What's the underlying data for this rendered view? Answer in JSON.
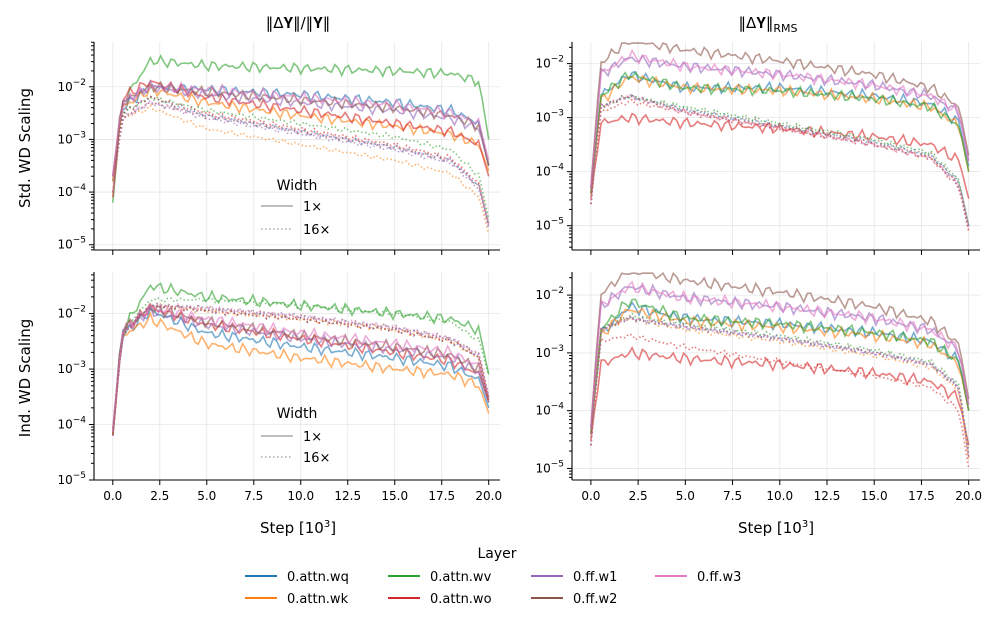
{
  "figure": {
    "col_titles": [
      "‖Δ𝐘‖/‖𝐘‖",
      "‖Δ𝐘‖",
      "RMS"
    ],
    "row_labels": [
      "Std. WD Scaling",
      "Ind. WD Scaling"
    ],
    "xlabel": "Step [10",
    "xlabel_sup": "3",
    "xlabel_end": "]",
    "x_ticks": [
      "0.0",
      "2.5",
      "5.0",
      "7.5",
      "10.0",
      "12.5",
      "15.0",
      "17.5",
      "20.0"
    ]
  },
  "legend": {
    "title": "Layer",
    "entries": [
      "0.attn.wq",
      "0.attn.wk",
      "0.attn.wv",
      "0.attn.wo",
      "0.ff.w1",
      "0.ff.w2",
      "0.ff.w3"
    ],
    "colors": [
      "#1f77b4",
      "#ff7f0e",
      "#2ca02c",
      "#d62728",
      "#9467bd",
      "#8c564b",
      "#e377c2"
    ]
  },
  "width_legend": {
    "title": "Width",
    "entries": [
      "1×",
      "16×"
    ]
  },
  "chart_data": [
    {
      "type": "line",
      "title": "‖ΔY‖/‖Y‖",
      "row_label": "Std. WD Scaling",
      "xlabel": "Step [10^3]",
      "xlim": [
        -1,
        20.6
      ],
      "yscale": "log",
      "ylim_log10": [
        -5.1,
        -1.15
      ],
      "y_ticks_log10": [
        -2,
        -3,
        -4,
        -5
      ],
      "series_note": "7 layers x 2 widths; y values as log10",
      "x": [
        0,
        0.5,
        2.0,
        5,
        10,
        15,
        18,
        19.5,
        20
      ],
      "series": [
        {
          "name": "0.attn.wq",
          "width": "1x",
          "y_log10": [
            -3.8,
            -2.4,
            -2.0,
            -2.05,
            -2.15,
            -2.3,
            -2.45,
            -2.7,
            -3.5
          ]
        },
        {
          "name": "0.attn.wk",
          "width": "1x",
          "y_log10": [
            -3.8,
            -2.4,
            -2.05,
            -2.3,
            -2.55,
            -2.75,
            -2.9,
            -3.1,
            -3.6
          ]
        },
        {
          "name": "0.attn.wv",
          "width": "1x",
          "y_log10": [
            -4.2,
            -2.3,
            -1.5,
            -1.6,
            -1.65,
            -1.7,
            -1.75,
            -1.9,
            -3.0
          ]
        },
        {
          "name": "0.attn.wo",
          "width": "1x",
          "y_log10": [
            -4.1,
            -2.2,
            -1.9,
            -2.2,
            -2.45,
            -2.7,
            -2.85,
            -3.1,
            -3.7
          ]
        },
        {
          "name": "0.ff.w1",
          "width": "1x",
          "y_log10": [
            -3.7,
            -2.3,
            -2.0,
            -2.15,
            -2.3,
            -2.45,
            -2.6,
            -2.8,
            -3.5
          ]
        },
        {
          "name": "0.ff.w2",
          "width": "1x",
          "y_log10": [
            -3.7,
            -2.3,
            -2.0,
            -2.1,
            -2.25,
            -2.4,
            -2.55,
            -2.75,
            -3.5
          ]
        },
        {
          "name": "0.ff.w3",
          "width": "1x",
          "y_log10": [
            -3.7,
            -2.3,
            -2.0,
            -2.05,
            -2.2,
            -2.35,
            -2.5,
            -2.7,
            -3.4
          ]
        },
        {
          "name": "0.attn.wq",
          "width": "16x",
          "y_log10": [
            -4.0,
            -2.5,
            -2.2,
            -2.55,
            -2.85,
            -3.15,
            -3.4,
            -3.9,
            -4.6
          ]
        },
        {
          "name": "0.attn.wk",
          "width": "16x",
          "y_log10": [
            -4.0,
            -2.6,
            -2.4,
            -2.8,
            -3.1,
            -3.4,
            -3.65,
            -4.1,
            -4.8
          ]
        },
        {
          "name": "0.attn.wv",
          "width": "16x",
          "y_log10": [
            -4.0,
            -2.5,
            -2.2,
            -2.45,
            -2.7,
            -2.95,
            -3.2,
            -3.7,
            -4.5
          ]
        },
        {
          "name": "0.attn.wo",
          "width": "16x",
          "y_log10": [
            -4.0,
            -2.5,
            -2.2,
            -2.5,
            -2.8,
            -3.1,
            -3.35,
            -3.85,
            -4.6
          ]
        },
        {
          "name": "0.ff.w1",
          "width": "16x",
          "y_log10": [
            -4.0,
            -2.6,
            -2.3,
            -2.6,
            -2.9,
            -3.2,
            -3.45,
            -3.95,
            -4.7
          ]
        },
        {
          "name": "0.ff.w2",
          "width": "16x",
          "y_log10": [
            -4.0,
            -2.6,
            -2.3,
            -2.55,
            -2.85,
            -3.15,
            -3.4,
            -3.9,
            -4.65
          ]
        },
        {
          "name": "0.ff.w3",
          "width": "16x",
          "y_log10": [
            -4.0,
            -2.6,
            -2.3,
            -2.55,
            -2.85,
            -3.15,
            -3.4,
            -3.9,
            -4.65
          ]
        }
      ]
    },
    {
      "type": "line",
      "title": "‖ΔY‖_RMS",
      "row_label": "Std. WD Scaling",
      "xlabel": "Step [10^3]",
      "xlim": [
        -1,
        20.6
      ],
      "yscale": "log",
      "ylim_log10": [
        -5.45,
        -1.6
      ],
      "y_ticks_log10": [
        -2,
        -3,
        -4,
        -5
      ],
      "x": [
        0,
        0.5,
        2.0,
        5,
        10,
        15,
        18,
        19.5,
        20
      ],
      "series": [
        {
          "name": "0.attn.wq",
          "width": "1x",
          "y_log10": [
            -4.4,
            -2.6,
            -2.2,
            -2.45,
            -2.45,
            -2.6,
            -2.75,
            -3.1,
            -3.9
          ]
        },
        {
          "name": "0.attn.wk",
          "width": "1x",
          "y_log10": [
            -4.4,
            -2.7,
            -2.25,
            -2.45,
            -2.5,
            -2.65,
            -2.8,
            -3.15,
            -4.0
          ]
        },
        {
          "name": "0.attn.wv",
          "width": "1x",
          "y_log10": [
            -4.4,
            -2.6,
            -2.2,
            -2.45,
            -2.5,
            -2.65,
            -2.8,
            -3.15,
            -4.0
          ]
        },
        {
          "name": "0.attn.wo",
          "width": "1x",
          "y_log10": [
            -4.5,
            -3.1,
            -3.0,
            -3.1,
            -3.2,
            -3.35,
            -3.5,
            -3.8,
            -4.5
          ]
        },
        {
          "name": "0.ff.w1",
          "width": "1x",
          "y_log10": [
            -4.3,
            -2.2,
            -1.9,
            -2.05,
            -2.2,
            -2.4,
            -2.6,
            -2.9,
            -3.8
          ]
        },
        {
          "name": "0.ff.w2",
          "width": "1x",
          "y_log10": [
            -4.3,
            -2.0,
            -1.55,
            -1.75,
            -1.95,
            -2.2,
            -2.45,
            -2.8,
            -3.7
          ]
        },
        {
          "name": "0.ff.w3",
          "width": "1x",
          "y_log10": [
            -4.3,
            -2.2,
            -1.85,
            -2.05,
            -2.2,
            -2.4,
            -2.6,
            -2.9,
            -3.8
          ]
        },
        {
          "name": "0.attn.wq",
          "width": "16x",
          "y_log10": [
            -4.6,
            -2.8,
            -2.6,
            -2.85,
            -3.15,
            -3.45,
            -3.7,
            -4.2,
            -5.0
          ]
        },
        {
          "name": "0.attn.wk",
          "width": "16x",
          "y_log10": [
            -4.6,
            -2.8,
            -2.6,
            -2.9,
            -3.2,
            -3.5,
            -3.75,
            -4.25,
            -5.1
          ]
        },
        {
          "name": "0.attn.wv",
          "width": "16x",
          "y_log10": [
            -4.6,
            -2.8,
            -2.6,
            -2.8,
            -3.1,
            -3.4,
            -3.65,
            -4.15,
            -5.0
          ]
        },
        {
          "name": "0.attn.wo",
          "width": "16x",
          "y_log10": [
            -4.6,
            -2.9,
            -2.7,
            -2.9,
            -3.2,
            -3.5,
            -3.75,
            -4.3,
            -5.1
          ]
        },
        {
          "name": "0.ff.w1",
          "width": "16x",
          "y_log10": [
            -4.6,
            -2.8,
            -2.6,
            -2.9,
            -3.2,
            -3.5,
            -3.75,
            -4.25,
            -5.05
          ]
        },
        {
          "name": "0.ff.w2",
          "width": "16x",
          "y_log10": [
            -4.6,
            -2.8,
            -2.6,
            -2.85,
            -3.15,
            -3.45,
            -3.7,
            -4.2,
            -5.0
          ]
        },
        {
          "name": "0.ff.w3",
          "width": "16x",
          "y_log10": [
            -4.6,
            -2.8,
            -2.6,
            -2.9,
            -3.2,
            -3.5,
            -3.75,
            -4.25,
            -5.05
          ]
        }
      ]
    },
    {
      "type": "line",
      "title": "",
      "row_label": "Ind. WD Scaling",
      "xlabel": "Step [10^3]",
      "xlim": [
        -1,
        20.6
      ],
      "yscale": "log",
      "ylim_log10": [
        -5.0,
        -1.25
      ],
      "y_ticks_log10": [
        -2,
        -3,
        -4,
        -5
      ],
      "x": [
        0,
        0.5,
        2.0,
        5,
        10,
        15,
        18,
        19.5,
        20
      ],
      "series": [
        {
          "name": "0.attn.wq",
          "width": "1x",
          "y_log10": [
            -4.2,
            -2.4,
            -1.95,
            -2.35,
            -2.6,
            -2.8,
            -2.95,
            -3.2,
            -3.7
          ]
        },
        {
          "name": "0.attn.wk",
          "width": "1x",
          "y_log10": [
            -4.2,
            -2.4,
            -2.1,
            -2.55,
            -2.8,
            -3.0,
            -3.1,
            -3.3,
            -3.8
          ]
        },
        {
          "name": "0.attn.wv",
          "width": "1x",
          "y_log10": [
            -4.2,
            -2.3,
            -1.5,
            -1.7,
            -1.85,
            -2.0,
            -2.1,
            -2.3,
            -3.1
          ]
        },
        {
          "name": "0.attn.wo",
          "width": "1x",
          "y_log10": [
            -4.2,
            -2.3,
            -1.9,
            -2.2,
            -2.45,
            -2.7,
            -2.85,
            -3.1,
            -3.6
          ]
        },
        {
          "name": "0.ff.w1",
          "width": "1x",
          "y_log10": [
            -4.1,
            -2.3,
            -1.95,
            -2.2,
            -2.45,
            -2.65,
            -2.8,
            -3.05,
            -3.6
          ]
        },
        {
          "name": "0.ff.w2",
          "width": "1x",
          "y_log10": [
            -4.1,
            -2.3,
            -1.9,
            -2.15,
            -2.4,
            -2.6,
            -2.75,
            -3.0,
            -3.55
          ]
        },
        {
          "name": "0.ff.w3",
          "width": "1x",
          "y_log10": [
            -4.1,
            -2.3,
            -1.9,
            -2.1,
            -2.35,
            -2.55,
            -2.7,
            -2.95,
            -3.5
          ]
        },
        {
          "name": "0.attn.wq",
          "width": "16x",
          "y_log10": [
            -4.2,
            -2.4,
            -1.85,
            -1.95,
            -2.1,
            -2.3,
            -2.5,
            -2.8,
            -3.6
          ]
        },
        {
          "name": "0.attn.wk",
          "width": "16x",
          "y_log10": [
            -4.2,
            -2.4,
            -1.85,
            -1.95,
            -2.1,
            -2.3,
            -2.5,
            -2.8,
            -3.6
          ]
        },
        {
          "name": "0.attn.wv",
          "width": "16x",
          "y_log10": [
            -4.2,
            -2.3,
            -1.75,
            -1.75,
            -1.85,
            -2.0,
            -2.15,
            -2.5,
            -3.1
          ]
        },
        {
          "name": "0.attn.wo",
          "width": "16x",
          "y_log10": [
            -4.2,
            -2.4,
            -1.85,
            -1.95,
            -2.1,
            -2.3,
            -2.5,
            -2.8,
            -3.6
          ]
        },
        {
          "name": "0.ff.w1",
          "width": "16x",
          "y_log10": [
            -4.2,
            -2.4,
            -1.85,
            -1.9,
            -2.05,
            -2.25,
            -2.45,
            -2.75,
            -3.5
          ]
        },
        {
          "name": "0.ff.w2",
          "width": "16x",
          "y_log10": [
            -4.2,
            -2.4,
            -1.85,
            -1.9,
            -2.05,
            -2.25,
            -2.45,
            -2.75,
            -3.5
          ]
        },
        {
          "name": "0.ff.w3",
          "width": "16x",
          "y_log10": [
            -4.2,
            -2.4,
            -1.85,
            -1.9,
            -2.05,
            -2.25,
            -2.45,
            -2.75,
            -3.5
          ]
        }
      ]
    },
    {
      "type": "line",
      "title": "",
      "row_label": "Ind. WD Scaling",
      "xlabel": "Step [10^3]",
      "xlim": [
        -1,
        20.6
      ],
      "yscale": "log",
      "ylim_log10": [
        -5.2,
        -1.6
      ],
      "y_ticks_log10": [
        -2,
        -3,
        -4,
        -5
      ],
      "x": [
        0,
        0.5,
        2.0,
        5,
        10,
        15,
        18,
        19.5,
        20
      ],
      "series": [
        {
          "name": "0.attn.wq",
          "width": "1x",
          "y_log10": [
            -4.4,
            -2.7,
            -2.2,
            -2.4,
            -2.5,
            -2.65,
            -2.8,
            -3.15,
            -4.0
          ]
        },
        {
          "name": "0.attn.wk",
          "width": "1x",
          "y_log10": [
            -4.4,
            -2.7,
            -2.25,
            -2.45,
            -2.55,
            -2.7,
            -2.85,
            -3.2,
            -4.0
          ]
        },
        {
          "name": "0.attn.wv",
          "width": "1x",
          "y_log10": [
            -4.4,
            -2.6,
            -2.1,
            -2.4,
            -2.5,
            -2.65,
            -2.8,
            -3.15,
            -4.0
          ]
        },
        {
          "name": "0.attn.wo",
          "width": "1x",
          "y_log10": [
            -4.5,
            -3.2,
            -3.0,
            -3.1,
            -3.2,
            -3.35,
            -3.5,
            -3.8,
            -4.6
          ]
        },
        {
          "name": "0.ff.w1",
          "width": "1x",
          "y_log10": [
            -4.3,
            -2.2,
            -1.85,
            -2.05,
            -2.2,
            -2.4,
            -2.6,
            -2.95,
            -3.9
          ]
        },
        {
          "name": "0.ff.w2",
          "width": "1x",
          "y_log10": [
            -4.3,
            -2.0,
            -1.55,
            -1.75,
            -1.95,
            -2.2,
            -2.45,
            -2.85,
            -3.8
          ]
        },
        {
          "name": "0.ff.w3",
          "width": "1x",
          "y_log10": [
            -4.3,
            -2.2,
            -1.85,
            -2.05,
            -2.2,
            -2.4,
            -2.6,
            -2.95,
            -3.9
          ]
        },
        {
          "name": "0.attn.wq",
          "width": "16x",
          "y_log10": [
            -4.6,
            -2.6,
            -2.4,
            -2.55,
            -2.75,
            -3.0,
            -3.2,
            -3.6,
            -4.8
          ]
        },
        {
          "name": "0.attn.wk",
          "width": "16x",
          "y_log10": [
            -4.6,
            -2.6,
            -2.4,
            -2.6,
            -2.8,
            -3.05,
            -3.25,
            -3.65,
            -4.85
          ]
        },
        {
          "name": "0.attn.wv",
          "width": "16x",
          "y_log10": [
            -4.6,
            -2.6,
            -2.35,
            -2.5,
            -2.7,
            -2.95,
            -3.15,
            -3.55,
            -4.7
          ]
        },
        {
          "name": "0.attn.wo",
          "width": "16x",
          "y_log10": [
            -4.6,
            -2.8,
            -2.7,
            -2.9,
            -3.15,
            -3.4,
            -3.6,
            -4.0,
            -5.0
          ]
        },
        {
          "name": "0.ff.w1",
          "width": "16x",
          "y_log10": [
            -4.6,
            -2.6,
            -2.4,
            -2.55,
            -2.75,
            -3.0,
            -3.2,
            -3.6,
            -4.8
          ]
        },
        {
          "name": "0.ff.w2",
          "width": "16x",
          "y_log10": [
            -4.6,
            -2.6,
            -2.4,
            -2.55,
            -2.75,
            -3.0,
            -3.2,
            -3.6,
            -4.8
          ]
        },
        {
          "name": "0.ff.w3",
          "width": "16x",
          "y_log10": [
            -4.6,
            -2.6,
            -2.4,
            -2.55,
            -2.75,
            -3.0,
            -3.2,
            -3.6,
            -4.8
          ]
        }
      ]
    }
  ]
}
